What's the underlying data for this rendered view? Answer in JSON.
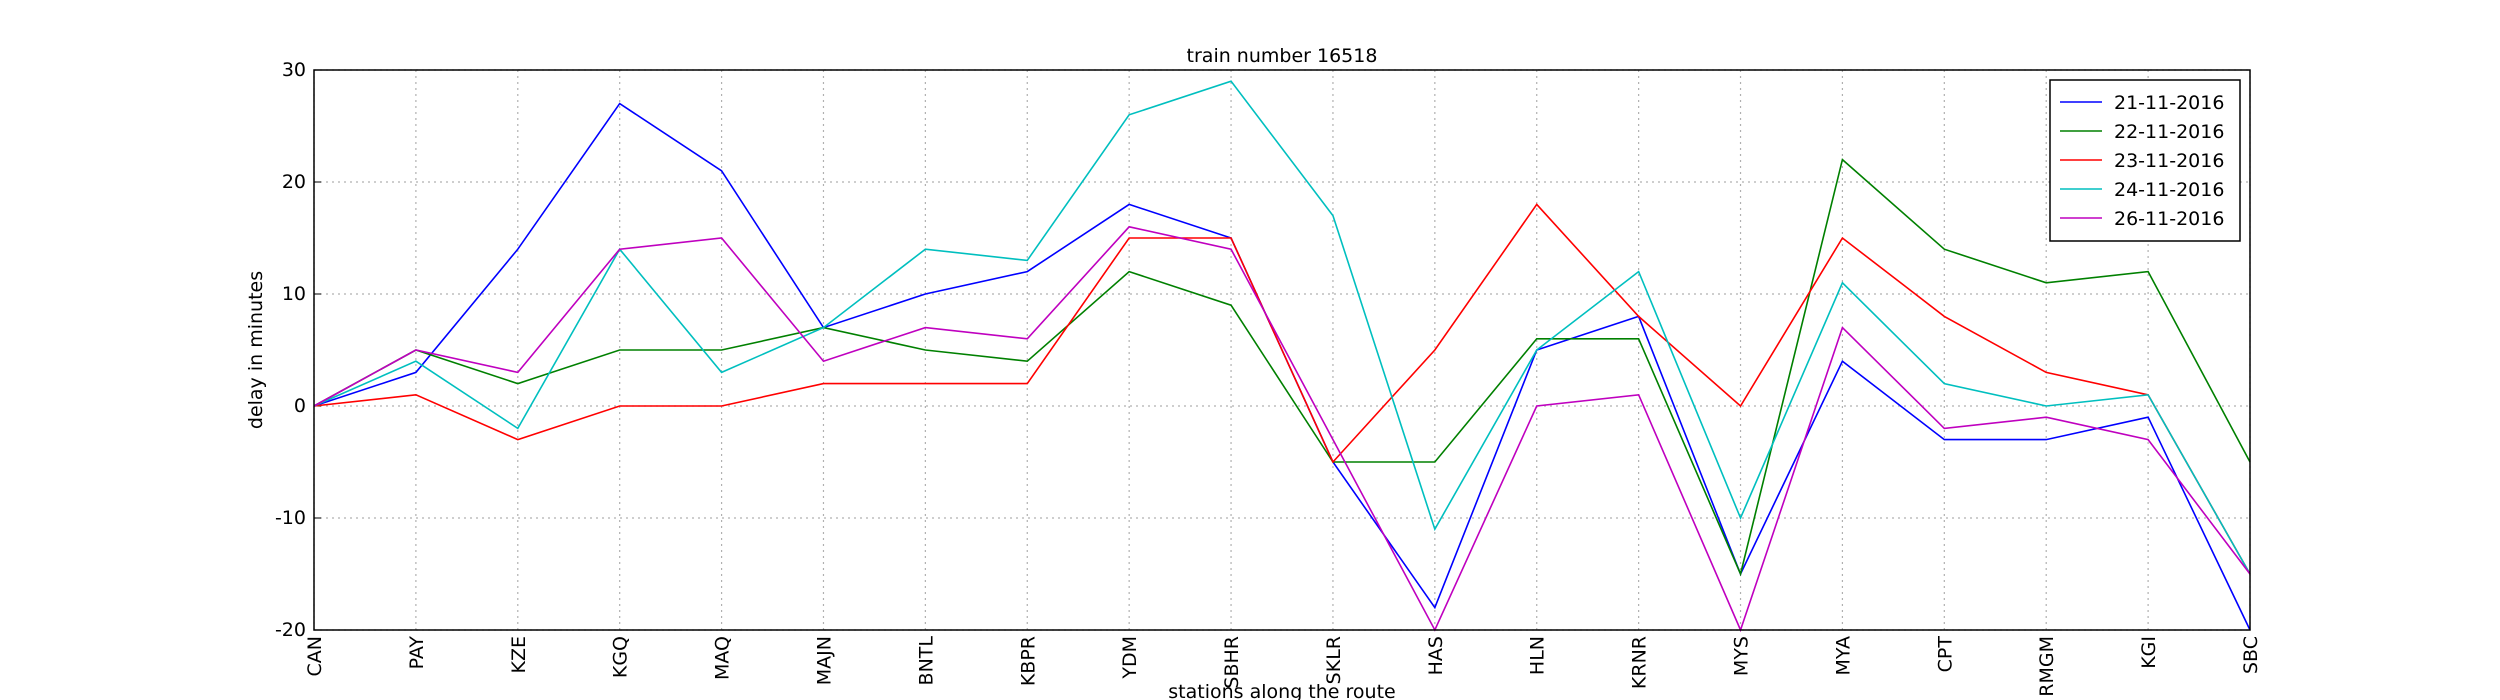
{
  "chart_data": {
    "type": "line",
    "title": "train number 16518",
    "xlabel": "stations along the route",
    "ylabel": "delay in minutes",
    "categories": [
      "CAN",
      "PAY",
      "KZE",
      "KGQ",
      "MAQ",
      "MAJN",
      "BNTL",
      "KBPR",
      "YDM",
      "SBHR",
      "SKLR",
      "HAS",
      "HLN",
      "KRNR",
      "MYS",
      "MYA",
      "CPT",
      "RMGM",
      "KGI",
      "SBC"
    ],
    "series": [
      {
        "name": "21-11-2016",
        "color": "#0000ff",
        "values": [
          0,
          3,
          14,
          27,
          21,
          7,
          10,
          12,
          18,
          15,
          -5,
          -18,
          5,
          8,
          -15,
          4,
          -3,
          -3,
          -1,
          -20
        ]
      },
      {
        "name": "22-11-2016",
        "color": "#008000",
        "values": [
          0,
          5,
          2,
          5,
          5,
          7,
          5,
          4,
          12,
          9,
          -5,
          -5,
          6,
          6,
          -15,
          22,
          14,
          11,
          12,
          -5
        ]
      },
      {
        "name": "23-11-2016",
        "color": "#ff0000",
        "values": [
          0,
          1,
          -3,
          0,
          0,
          2,
          2,
          2,
          15,
          15,
          -5,
          5,
          18,
          8,
          0,
          15,
          8,
          3,
          1,
          -15
        ]
      },
      {
        "name": "24-11-2016",
        "color": "#00bfbf",
        "values": [
          0,
          4,
          -2,
          14,
          3,
          7,
          14,
          13,
          26,
          29,
          17,
          -11,
          5,
          12,
          -10,
          11,
          2,
          0,
          1,
          -15
        ]
      },
      {
        "name": "26-11-2016",
        "color": "#bf00bf",
        "values": [
          0,
          5,
          3,
          14,
          15,
          4,
          7,
          6,
          16,
          14,
          -3,
          -20,
          0,
          1,
          -20,
          7,
          -2,
          -1,
          -3,
          -15
        ]
      }
    ],
    "ylim": [
      -20,
      30
    ],
    "yticks": [
      -20,
      -10,
      0,
      10,
      20,
      30
    ],
    "grid": true,
    "legend": "upper right"
  }
}
